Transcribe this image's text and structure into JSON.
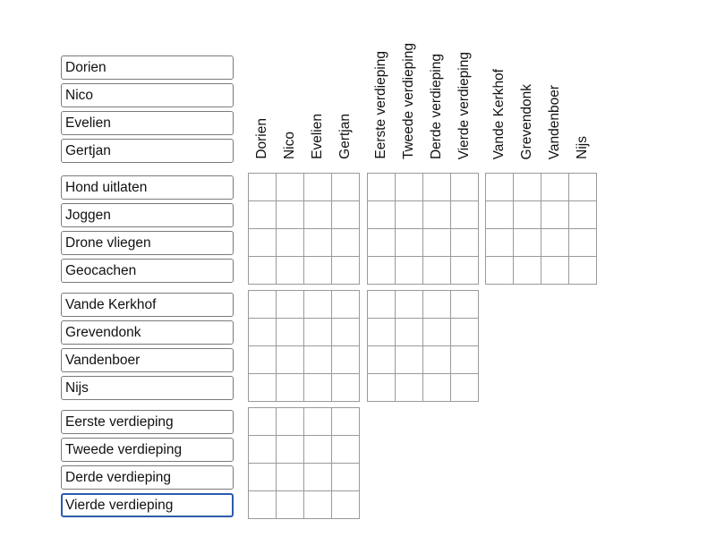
{
  "row_groups": [
    {
      "items": [
        "Dorien",
        "Nico",
        "Evelien",
        "Gertjan"
      ]
    },
    {
      "items": [
        "Hond uitlaten",
        "Joggen",
        "Drone vliegen",
        "Geocachen"
      ]
    },
    {
      "items": [
        "Vande Kerkhof",
        "Grevendonk",
        "Vandenboer",
        "Nijs"
      ]
    },
    {
      "items": [
        "Eerste verdieping",
        "Tweede verdieping",
        "Derde verdieping",
        "Vierde verdieping"
      ]
    }
  ],
  "focused_input": "Vierde verdieping",
  "column_groups": [
    {
      "items": [
        "Dorien",
        "Nico",
        "Evelien",
        "Gertjan"
      ]
    },
    {
      "items": [
        "Eerste verdieping",
        "Tweede verdieping",
        "Derde verdieping",
        "Vierde verdieping"
      ]
    },
    {
      "items": [
        "Vande Kerkhof",
        "Grevendonk",
        "Vandenboer",
        "Nijs"
      ]
    }
  ],
  "colors": {
    "focus_border": "#2b5cad",
    "grid_line": "#9a9a9a"
  }
}
